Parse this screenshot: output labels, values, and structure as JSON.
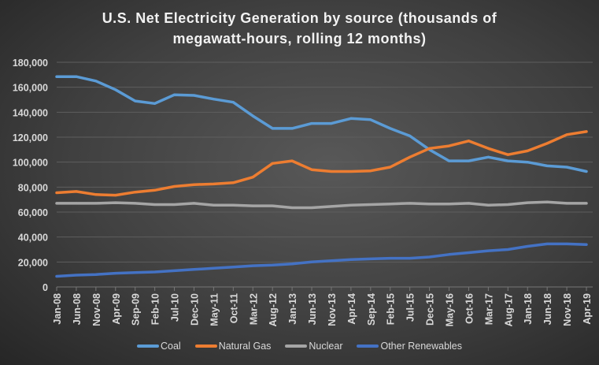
{
  "chart_data": {
    "type": "line",
    "title": "U.S. Net Electricity Generation by source (thousands of megawatt-hours, rolling 12 months)",
    "title_lines": [
      "U.S. Net Electricity Generation by source (thousands of",
      "megawatt-hours, rolling 12 months)"
    ],
    "xlabel": "",
    "ylabel": "",
    "ylim": [
      0,
      180000
    ],
    "y_ticks": [
      "0",
      "20,000",
      "40,000",
      "60,000",
      "80,000",
      "100,000",
      "120,000",
      "140,000",
      "160,000",
      "180,000"
    ],
    "grid": true,
    "legend_position": "bottom",
    "categories": [
      "Jan-08",
      "Jun-08",
      "Nov-08",
      "Apr-09",
      "Sep-09",
      "Feb-10",
      "Jul-10",
      "Dec-10",
      "May-11",
      "Oct-11",
      "Mar-12",
      "Aug-12",
      "Jan-13",
      "Jun-13",
      "Nov-13",
      "Apr-14",
      "Sep-14",
      "Feb-15",
      "Jul-15",
      "Dec-15",
      "May-16",
      "Oct-16",
      "Mar-17",
      "Aug-17",
      "Jan-18",
      "Jun-18",
      "Nov-18",
      "Apr-19"
    ],
    "series": [
      {
        "name": "Coal",
        "color": "#5b9bd5",
        "values": [
          168500,
          168500,
          165000,
          158000,
          149000,
          147000,
          154000,
          153500,
          150500,
          148000,
          137000,
          127000,
          127000,
          131000,
          131000,
          135000,
          134000,
          127000,
          121000,
          110000,
          101000,
          101000,
          104000,
          101000,
          100000,
          97000,
          96000,
          92500
        ]
      },
      {
        "name": "Natural Gas",
        "color": "#ed7d31",
        "values": [
          75500,
          76500,
          74000,
          73500,
          76000,
          77500,
          80500,
          82000,
          82500,
          83500,
          88000,
          99000,
          101000,
          94000,
          92500,
          92500,
          93000,
          96000,
          104000,
          111000,
          113000,
          117000,
          111000,
          106000,
          109000,
          115000,
          122000,
          124500
        ]
      },
      {
        "name": "Nuclear",
        "color": "#a5a5a5",
        "values": [
          67000,
          67000,
          67000,
          67500,
          67000,
          66000,
          66000,
          67000,
          65500,
          65500,
          65000,
          65000,
          63500,
          63500,
          64500,
          65500,
          66000,
          66500,
          67000,
          66500,
          66500,
          67000,
          65500,
          66000,
          67500,
          68000,
          67000,
          67000
        ]
      },
      {
        "name": "Other Renewables",
        "color": "#4472c4",
        "values": [
          8500,
          9500,
          10000,
          11000,
          11500,
          12000,
          13000,
          14000,
          15000,
          16000,
          17000,
          17500,
          18500,
          20000,
          21000,
          22000,
          22500,
          23000,
          23000,
          24000,
          26000,
          27500,
          29000,
          30000,
          32500,
          34500,
          34500,
          34000
        ]
      }
    ]
  }
}
